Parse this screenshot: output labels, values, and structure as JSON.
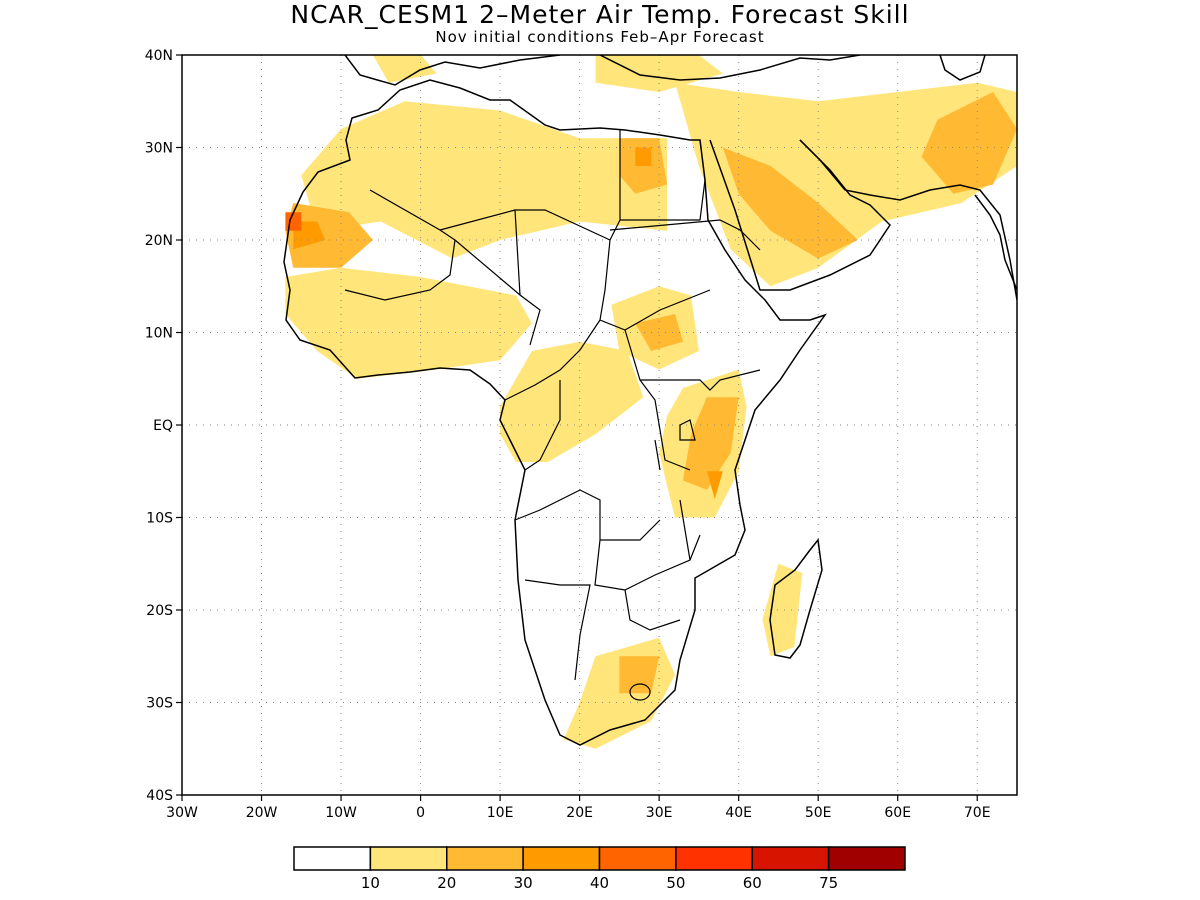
{
  "title": "NCAR_CESM1 2–Meter Air Temp. Forecast Skill",
  "subtitle": "Nov initial conditions  Feb–Apr Forecast",
  "map": {
    "lat_range": [
      -40,
      40
    ],
    "lon_range": [
      -30,
      75
    ],
    "lat_ticks": [
      {
        "value": 40,
        "label": "40N"
      },
      {
        "value": 30,
        "label": "30N"
      },
      {
        "value": 20,
        "label": "20N"
      },
      {
        "value": 10,
        "label": "10N"
      },
      {
        "value": 0,
        "label": "EQ"
      },
      {
        "value": -10,
        "label": "10S"
      },
      {
        "value": -20,
        "label": "20S"
      },
      {
        "value": -30,
        "label": "30S"
      },
      {
        "value": -40,
        "label": "40S"
      }
    ],
    "lon_ticks": [
      {
        "value": -30,
        "label": "30W"
      },
      {
        "value": -20,
        "label": "20W"
      },
      {
        "value": -10,
        "label": "10W"
      },
      {
        "value": 0,
        "label": "0"
      },
      {
        "value": 10,
        "label": "10E"
      },
      {
        "value": 20,
        "label": "20E"
      },
      {
        "value": 30,
        "label": "30E"
      },
      {
        "value": 40,
        "label": "40E"
      },
      {
        "value": 50,
        "label": "50E"
      },
      {
        "value": 60,
        "label": "60E"
      },
      {
        "value": 70,
        "label": "70E"
      }
    ],
    "grid": true,
    "skill_regions": [
      {
        "level": 1,
        "region": "Sahara north",
        "points": [
          [
            -15,
            27
          ],
          [
            -10,
            32
          ],
          [
            -2,
            35
          ],
          [
            10,
            34
          ],
          [
            20,
            31
          ],
          [
            31,
            31
          ],
          [
            31,
            21
          ],
          [
            20,
            22
          ],
          [
            10,
            20
          ],
          [
            4,
            18
          ],
          [
            -5,
            22
          ],
          [
            -13,
            21
          ]
        ]
      },
      {
        "level": 1,
        "region": "Middle East",
        "points": [
          [
            32,
            37
          ],
          [
            40,
            36
          ],
          [
            50,
            35
          ],
          [
            60,
            36
          ],
          [
            70,
            37
          ],
          [
            75,
            36
          ],
          [
            75,
            28
          ],
          [
            68,
            24
          ],
          [
            58,
            22
          ],
          [
            50,
            17
          ],
          [
            44,
            15
          ],
          [
            39,
            19
          ],
          [
            35,
            28
          ]
        ]
      },
      {
        "level": 1,
        "region": "Mediterranean north",
        "points": [
          [
            -6,
            40
          ],
          [
            0,
            40
          ],
          [
            2,
            38
          ],
          [
            -4,
            37
          ]
        ]
      },
      {
        "level": 1,
        "region": "Eastern Mediterranean",
        "points": [
          [
            22,
            40
          ],
          [
            35,
            40
          ],
          [
            38,
            38
          ],
          [
            30,
            36
          ],
          [
            22,
            37
          ]
        ]
      },
      {
        "level": 1,
        "region": "West Africa",
        "points": [
          [
            -17,
            16
          ],
          [
            -10,
            17
          ],
          [
            0,
            16
          ],
          [
            12,
            14
          ],
          [
            14,
            11
          ],
          [
            10,
            7
          ],
          [
            2,
            6
          ],
          [
            -8,
            5
          ],
          [
            -13,
            8
          ],
          [
            -17,
            12
          ]
        ]
      },
      {
        "level": 1,
        "region": "Central Africa",
        "points": [
          [
            10,
            2
          ],
          [
            14,
            8
          ],
          [
            20,
            9
          ],
          [
            26,
            8
          ],
          [
            28,
            3
          ],
          [
            22,
            -1
          ],
          [
            16,
            -4
          ],
          [
            12,
            -4
          ],
          [
            10,
            -1
          ]
        ]
      },
      {
        "level": 1,
        "region": "Sudan",
        "points": [
          [
            24,
            13
          ],
          [
            30,
            15
          ],
          [
            34,
            14
          ],
          [
            35,
            8
          ],
          [
            30,
            6
          ],
          [
            25,
            8
          ]
        ]
      },
      {
        "level": 1,
        "region": "East Africa",
        "points": [
          [
            33,
            4
          ],
          [
            40,
            6
          ],
          [
            41,
            2
          ],
          [
            40,
            -5
          ],
          [
            37,
            -10
          ],
          [
            32,
            -10
          ],
          [
            30,
            -3
          ],
          [
            31,
            1
          ]
        ]
      },
      {
        "level": 1,
        "region": "Madagascar",
        "points": [
          [
            45,
            -15
          ],
          [
            48,
            -16
          ],
          [
            47,
            -24
          ],
          [
            44,
            -25
          ],
          [
            43,
            -21
          ]
        ]
      },
      {
        "level": 1,
        "region": "Southern Africa",
        "points": [
          [
            22,
            -25
          ],
          [
            30,
            -23
          ],
          [
            32,
            -27
          ],
          [
            29,
            -32
          ],
          [
            22,
            -35
          ],
          [
            18,
            -34
          ],
          [
            20,
            -30
          ]
        ]
      },
      {
        "level": 2,
        "region": "Mauritania",
        "points": [
          [
            -16,
            24
          ],
          [
            -9,
            23
          ],
          [
            -6,
            20
          ],
          [
            -10,
            17
          ],
          [
            -16,
            17
          ],
          [
            -17,
            21
          ]
        ]
      },
      {
        "level": 2,
        "region": "Egypt",
        "points": [
          [
            25,
            31
          ],
          [
            30,
            31
          ],
          [
            31,
            26
          ],
          [
            27,
            25
          ],
          [
            25,
            27
          ]
        ]
      },
      {
        "level": 2,
        "region": "Arabia",
        "points": [
          [
            38,
            30
          ],
          [
            44,
            28
          ],
          [
            50,
            24
          ],
          [
            55,
            20
          ],
          [
            50,
            18
          ],
          [
            44,
            21
          ],
          [
            40,
            25
          ]
        ]
      },
      {
        "level": 2,
        "region": "Pakistan",
        "points": [
          [
            65,
            33
          ],
          [
            72,
            36
          ],
          [
            75,
            32
          ],
          [
            72,
            26
          ],
          [
            67,
            25
          ],
          [
            63,
            29
          ]
        ]
      },
      {
        "level": 2,
        "region": "East Africa core",
        "points": [
          [
            36,
            3
          ],
          [
            40,
            3
          ],
          [
            39,
            -3
          ],
          [
            36,
            -7
          ],
          [
            33,
            -6
          ],
          [
            34,
            -1
          ]
        ]
      },
      {
        "level": 2,
        "region": "South Africa",
        "points": [
          [
            25,
            -25
          ],
          [
            30,
            -25
          ],
          [
            29,
            -29
          ],
          [
            25,
            -29
          ]
        ]
      },
      {
        "level": 2,
        "region": "Sudan core",
        "points": [
          [
            27,
            11
          ],
          [
            32,
            12
          ],
          [
            33,
            9
          ],
          [
            29,
            8
          ]
        ]
      },
      {
        "level": 3,
        "region": "Mauritania core",
        "points": [
          [
            -16,
            22
          ],
          [
            -13,
            22
          ],
          [
            -12,
            20
          ],
          [
            -16,
            19
          ]
        ]
      },
      {
        "level": 3,
        "region": "Egypt core",
        "points": [
          [
            27,
            30
          ],
          [
            29,
            30
          ],
          [
            29,
            28
          ],
          [
            27,
            28
          ]
        ]
      },
      {
        "level": 3,
        "region": "Kenya core",
        "points": [
          [
            36,
            -5
          ],
          [
            38,
            -5
          ],
          [
            37,
            -8
          ]
        ]
      },
      {
        "level": 4,
        "region": "Western Sahara coast",
        "points": [
          [
            -17,
            23
          ],
          [
            -15,
            23
          ],
          [
            -15,
            21
          ],
          [
            -17,
            21
          ]
        ]
      }
    ]
  },
  "colorbar": {
    "colors": [
      "#ffffff",
      "#ffe57a",
      "#ffb932",
      "#ff9a00",
      "#ff6400",
      "#ff3200",
      "#d71400",
      "#a00000"
    ],
    "labels": [
      "10",
      "20",
      "30",
      "40",
      "50",
      "60",
      "75"
    ]
  }
}
